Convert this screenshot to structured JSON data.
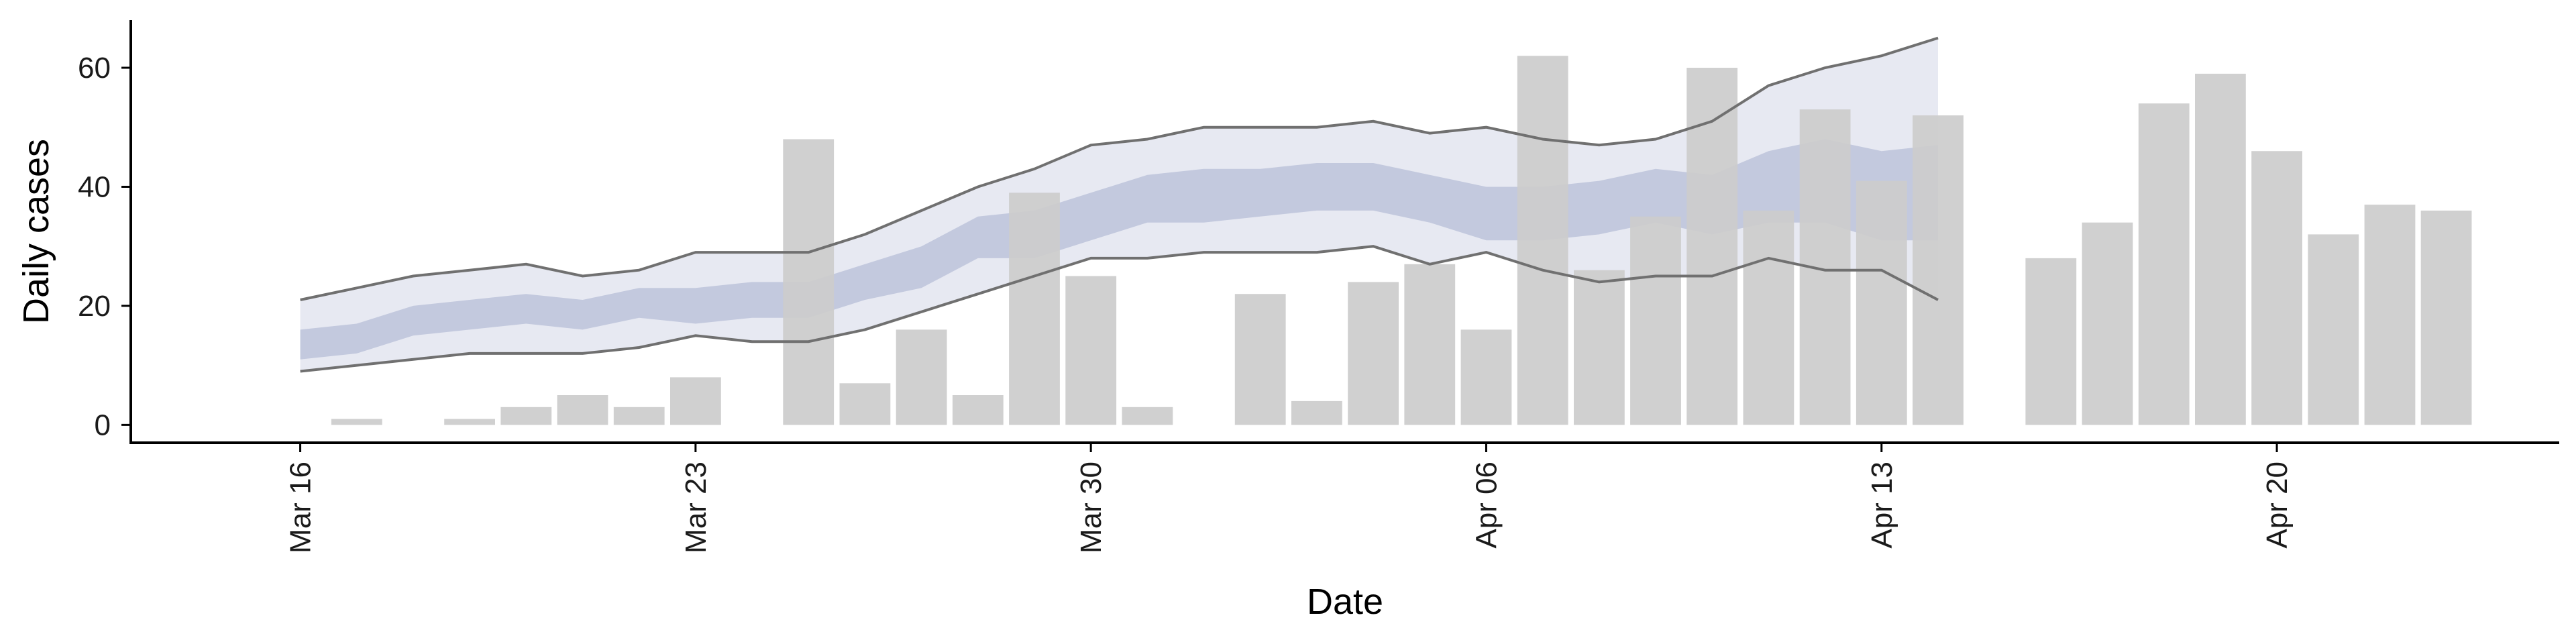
{
  "chart_data": {
    "type": "bar",
    "title": "",
    "xlabel": "Date",
    "ylabel": "Daily cases",
    "ylim": [
      -3,
      68
    ],
    "yticks": [
      0,
      20,
      40,
      60
    ],
    "xticks": [
      {
        "x": "2020-03-16",
        "label": "Mar 16"
      },
      {
        "x": "2020-03-23",
        "label": "Mar 23"
      },
      {
        "x": "2020-03-30",
        "label": "Mar 30"
      },
      {
        "x": "2020-04-06",
        "label": "Apr 06"
      },
      {
        "x": "2020-04-13",
        "label": "Apr 13"
      },
      {
        "x": "2020-04-20",
        "label": "Apr 20"
      }
    ],
    "xlim": [
      "2020-03-13",
      "2020-04-25"
    ],
    "grid": false,
    "bars": {
      "x": [
        "2020-03-17",
        "2020-03-19",
        "2020-03-20",
        "2020-03-21",
        "2020-03-22",
        "2020-03-23",
        "2020-03-25",
        "2020-03-26",
        "2020-03-27",
        "2020-03-28",
        "2020-03-29",
        "2020-03-30",
        "2020-03-31",
        "2020-04-02",
        "2020-04-03",
        "2020-04-04",
        "2020-04-05",
        "2020-04-06",
        "2020-04-07",
        "2020-04-08",
        "2020-04-09",
        "2020-04-10",
        "2020-04-11",
        "2020-04-12",
        "2020-04-13",
        "2020-04-14",
        "2020-04-16",
        "2020-04-17",
        "2020-04-18",
        "2020-04-19",
        "2020-04-20",
        "2020-04-21",
        "2020-04-22",
        "2020-04-23"
      ],
      "values": [
        1,
        1,
        3,
        5,
        3,
        8,
        48,
        7,
        16,
        5,
        39,
        25,
        3,
        22,
        4,
        24,
        27,
        16,
        62,
        26,
        35,
        60,
        36,
        53,
        41,
        52,
        28,
        34,
        54,
        59,
        46,
        32,
        37,
        36
      ],
      "color": "#cccccc"
    },
    "forecast": {
      "x": [
        "2020-03-16",
        "2020-03-17",
        "2020-03-18",
        "2020-03-19",
        "2020-03-20",
        "2020-03-21",
        "2020-03-22",
        "2020-03-23",
        "2020-03-24",
        "2020-03-25",
        "2020-03-26",
        "2020-03-27",
        "2020-03-28",
        "2020-03-29",
        "2020-03-30",
        "2020-03-31",
        "2020-04-01",
        "2020-04-02",
        "2020-04-03",
        "2020-04-04",
        "2020-04-05",
        "2020-04-06",
        "2020-04-07",
        "2020-04-08",
        "2020-04-09",
        "2020-04-10",
        "2020-04-11",
        "2020-04-12",
        "2020-04-13",
        "2020-04-14"
      ],
      "upper_outer": [
        21,
        23,
        25,
        26,
        27,
        25,
        26,
        29,
        29,
        29,
        32,
        36,
        40,
        43,
        47,
        48,
        50,
        50,
        50,
        51,
        49,
        50,
        48,
        47,
        48,
        51,
        57,
        60,
        62,
        65
      ],
      "lower_outer": [
        9,
        10,
        11,
        12,
        12,
        12,
        13,
        15,
        14,
        14,
        16,
        19,
        22,
        25,
        28,
        28,
        29,
        29,
        29,
        30,
        27,
        29,
        26,
        24,
        25,
        25,
        28,
        26,
        26,
        21
      ],
      "upper_inner": [
        16,
        17,
        20,
        21,
        22,
        21,
        23,
        23,
        24,
        24,
        27,
        30,
        35,
        36,
        39,
        42,
        43,
        43,
        44,
        44,
        42,
        40,
        40,
        41,
        43,
        42,
        46,
        48,
        46,
        47
      ],
      "lower_inner": [
        11,
        12,
        15,
        16,
        17,
        16,
        18,
        17,
        18,
        18,
        21,
        23,
        28,
        28,
        31,
        34,
        34,
        35,
        36,
        36,
        34,
        31,
        31,
        32,
        34,
        32,
        34,
        34,
        31,
        31
      ],
      "outer_band_color": "#e7e9f2",
      "inner_band_color": "#c3c9de",
      "line_color": "#707070"
    }
  }
}
